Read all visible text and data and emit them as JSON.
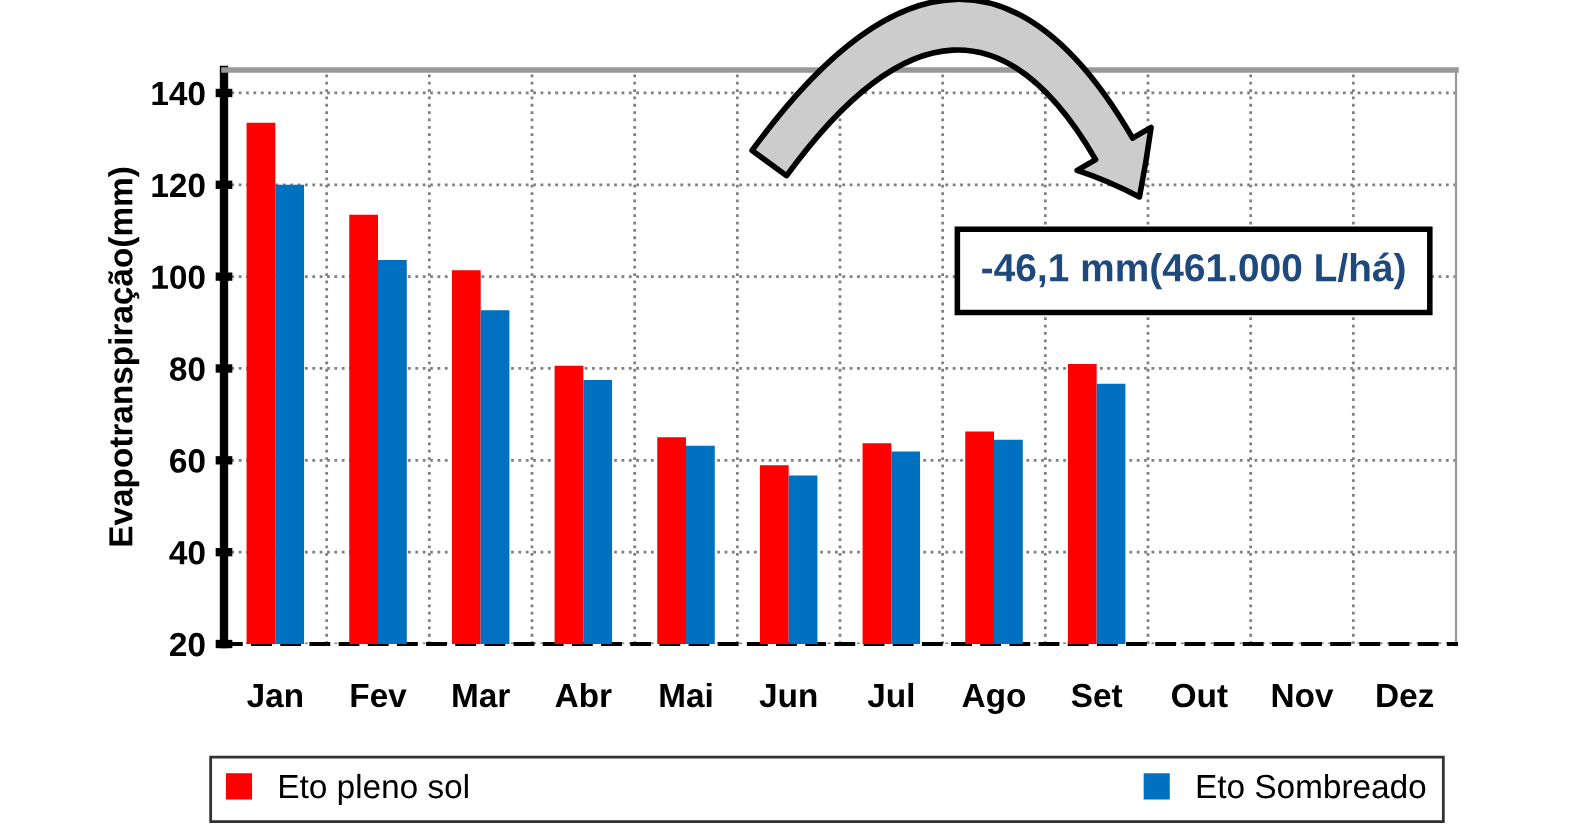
{
  "chart_data": {
    "type": "bar",
    "ylabel": "Evapotranspiração(mm)",
    "categories": [
      "Jan",
      "Fev",
      "Mar",
      "Abr",
      "Mai",
      "Jun",
      "Jul",
      "Ago",
      "Set",
      "Out",
      "Nov",
      "Dez"
    ],
    "series": [
      {
        "name": "Eto pleno sol",
        "color": "#ff0000",
        "values": [
          133.5,
          113.5,
          101.4,
          80.6,
          65,
          58.9,
          63.7,
          66.3,
          81,
          null,
          null,
          null
        ]
      },
      {
        "name": "Eto Sombreado",
        "color": "#0070c0",
        "values": [
          120,
          103.6,
          92.7,
          77.5,
          63.2,
          56.7,
          61.9,
          64.5,
          76.7,
          null,
          null,
          null
        ]
      }
    ],
    "ylim": [
      20,
      145
    ],
    "yticks": [
      20,
      40,
      60,
      80,
      100,
      120,
      140
    ],
    "grid": true,
    "legend": "bottom",
    "annotations": [
      "-46,1 mm(461.000 L/há)"
    ]
  }
}
